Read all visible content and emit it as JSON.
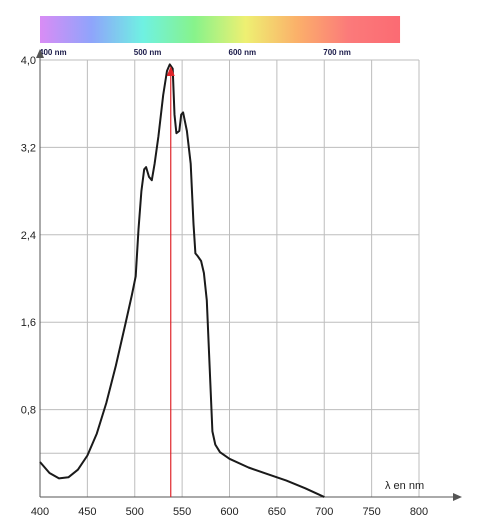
{
  "chart_data": {
    "type": "line",
    "title": "",
    "xlabel": "λ en nm",
    "ylabel": "",
    "xlim": [
      400,
      800
    ],
    "ylim": [
      0,
      4.0
    ],
    "grid": true,
    "x_ticks": [
      {
        "value": 400,
        "label": "400"
      },
      {
        "value": 450,
        "label": "450"
      },
      {
        "value": 500,
        "label": "500"
      },
      {
        "value": 550,
        "label": "550"
      },
      {
        "value": 600,
        "label": "600"
      },
      {
        "value": 650,
        "label": "650"
      },
      {
        "value": 700,
        "label": "700"
      },
      {
        "value": 750,
        "label": "750"
      },
      {
        "value": 800,
        "label": "800"
      }
    ],
    "y_ticks": [
      {
        "value": 0.8,
        "label": "0,8"
      },
      {
        "value": 1.6,
        "label": "1,6"
      },
      {
        "value": 2.4,
        "label": "2,4"
      },
      {
        "value": 3.2,
        "label": "3,2"
      },
      {
        "value": 4.0,
        "label": "4,0"
      }
    ],
    "spectrum_band": {
      "range": [
        400,
        780
      ],
      "labels": [
        {
          "value": 400,
          "label": "400 nm"
        },
        {
          "value": 500,
          "label": "500 nm"
        },
        {
          "value": 600,
          "label": "600 nm"
        },
        {
          "value": 700,
          "label": "700 nm"
        }
      ],
      "colors": [
        "#d98cf5",
        "#8fa4fb",
        "#6ff1e2",
        "#87f38b",
        "#eef072",
        "#fbb06a",
        "#fb7a7a",
        "#fb6b73"
      ]
    },
    "peak_marker": {
      "x": 538,
      "color": "#e0242a"
    },
    "series": [
      {
        "color": "#1a1a1a",
        "points": [
          [
            400,
            0.32
          ],
          [
            410,
            0.22
          ],
          [
            420,
            0.17
          ],
          [
            430,
            0.18
          ],
          [
            440,
            0.25
          ],
          [
            450,
            0.38
          ],
          [
            460,
            0.58
          ],
          [
            470,
            0.86
          ],
          [
            480,
            1.2
          ],
          [
            490,
            1.58
          ],
          [
            497,
            1.85
          ],
          [
            501,
            2.02
          ],
          [
            504,
            2.45
          ],
          [
            507,
            2.8
          ],
          [
            510,
            3.0
          ],
          [
            512,
            3.02
          ],
          [
            515,
            2.93
          ],
          [
            518,
            2.9
          ],
          [
            521,
            3.05
          ],
          [
            525,
            3.3
          ],
          [
            530,
            3.68
          ],
          [
            534,
            3.9
          ],
          [
            537,
            3.96
          ],
          [
            540,
            3.92
          ],
          [
            542,
            3.5
          ],
          [
            544,
            3.33
          ],
          [
            547,
            3.35
          ],
          [
            549,
            3.5
          ],
          [
            551,
            3.52
          ],
          [
            555,
            3.35
          ],
          [
            559,
            3.05
          ],
          [
            562,
            2.5
          ],
          [
            564,
            2.23
          ],
          [
            566,
            2.21
          ],
          [
            570,
            2.16
          ],
          [
            573,
            2.05
          ],
          [
            576,
            1.8
          ],
          [
            579,
            1.2
          ],
          [
            582,
            0.6
          ],
          [
            585,
            0.48
          ],
          [
            590,
            0.41
          ],
          [
            600,
            0.35
          ],
          [
            620,
            0.27
          ],
          [
            640,
            0.21
          ],
          [
            660,
            0.15
          ],
          [
            680,
            0.08
          ],
          [
            695,
            0.02
          ],
          [
            700,
            0.0
          ]
        ]
      }
    ]
  }
}
